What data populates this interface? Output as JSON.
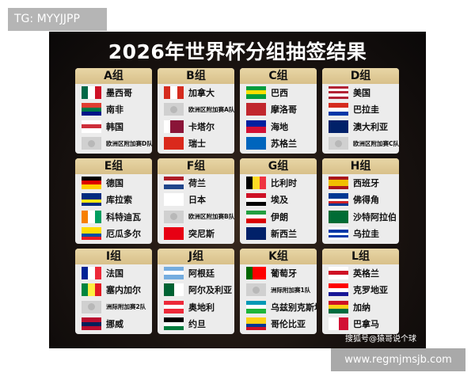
{
  "tag": "TG: MYYJJPP",
  "title": "2026年世界杯分组抽签结果",
  "credit": "搜狐号@猿哥说个球",
  "watermark": "www.regmjmsjb.com",
  "groups": [
    {
      "name": "A组",
      "teams": [
        {
          "name": "墨西哥",
          "flag": "v",
          "colors": [
            "#006847",
            "#ffffff",
            "#ce1126"
          ]
        },
        {
          "name": "南非",
          "flag": "h",
          "colors": [
            "#e03c31",
            "#007749",
            "#001489"
          ]
        },
        {
          "name": "韩国",
          "flag": "h",
          "colors": [
            "#ffffff",
            "#cd2e3a",
            "#ffffff"
          ]
        },
        {
          "name": "欧洲区附加赛D队",
          "flag": "placeholder"
        }
      ]
    },
    {
      "name": "B组",
      "teams": [
        {
          "name": "加拿大",
          "flag": "v",
          "colors": [
            "#d52b1e",
            "#ffffff",
            "#d52b1e"
          ]
        },
        {
          "name": "欧洲区附加赛A队",
          "flag": "placeholder"
        },
        {
          "name": "卡塔尔",
          "flag": "v",
          "colors": [
            "#ffffff",
            "#8a1538",
            "#8a1538"
          ]
        },
        {
          "name": "瑞士",
          "flag": "h",
          "colors": [
            "#da291c"
          ]
        }
      ]
    },
    {
      "name": "C组",
      "teams": [
        {
          "name": "巴西",
          "flag": "h",
          "colors": [
            "#009c3b",
            "#ffdf00",
            "#009c3b"
          ]
        },
        {
          "name": "摩洛哥",
          "flag": "h",
          "colors": [
            "#c1272d"
          ]
        },
        {
          "name": "海地",
          "flag": "h",
          "colors": [
            "#00209f",
            "#d21034"
          ]
        },
        {
          "name": "苏格兰",
          "flag": "h",
          "colors": [
            "#0065bd"
          ]
        }
      ]
    },
    {
      "name": "D组",
      "teams": [
        {
          "name": "美国",
          "flag": "h",
          "colors": [
            "#b22234",
            "#ffffff",
            "#b22234",
            "#ffffff",
            "#b22234"
          ]
        },
        {
          "name": "巴拉圭",
          "flag": "h",
          "colors": [
            "#d52b1e",
            "#ffffff",
            "#0038a8"
          ]
        },
        {
          "name": "澳大利亚",
          "flag": "h",
          "colors": [
            "#012169"
          ]
        },
        {
          "name": "欧洲区附加赛C队",
          "flag": "placeholder"
        }
      ]
    },
    {
      "name": "E组",
      "teams": [
        {
          "name": "德国",
          "flag": "h",
          "colors": [
            "#000000",
            "#dd0000",
            "#ffce00"
          ]
        },
        {
          "name": "库拉索",
          "flag": "h",
          "colors": [
            "#002b7f",
            "#002b7f",
            "#f9e814",
            "#002b7f"
          ]
        },
        {
          "name": "科特迪瓦",
          "flag": "v",
          "colors": [
            "#f77f00",
            "#ffffff",
            "#009e60"
          ]
        },
        {
          "name": "厄瓜多尔",
          "flag": "h",
          "colors": [
            "#ffdd00",
            "#ffdd00",
            "#034ea2",
            "#ed1c24"
          ]
        }
      ]
    },
    {
      "name": "F组",
      "teams": [
        {
          "name": "荷兰",
          "flag": "h",
          "colors": [
            "#ae1c28",
            "#ffffff",
            "#21468b"
          ]
        },
        {
          "name": "日本",
          "flag": "h",
          "colors": [
            "#ffffff"
          ]
        },
        {
          "name": "欧洲区附加赛B队",
          "flag": "placeholder"
        },
        {
          "name": "突尼斯",
          "flag": "h",
          "colors": [
            "#e70013"
          ]
        }
      ]
    },
    {
      "name": "G组",
      "teams": [
        {
          "name": "比利时",
          "flag": "v",
          "colors": [
            "#000000",
            "#fdda24",
            "#ef3340"
          ]
        },
        {
          "name": "埃及",
          "flag": "h",
          "colors": [
            "#ce1126",
            "#ffffff",
            "#000000"
          ]
        },
        {
          "name": "伊朗",
          "flag": "h",
          "colors": [
            "#239f40",
            "#ffffff",
            "#da0000"
          ]
        },
        {
          "name": "新西兰",
          "flag": "h",
          "colors": [
            "#012169"
          ]
        }
      ]
    },
    {
      "name": "H组",
      "teams": [
        {
          "name": "西班牙",
          "flag": "h",
          "colors": [
            "#aa151b",
            "#f1bf00",
            "#f1bf00",
            "#aa151b"
          ]
        },
        {
          "name": "佛得角",
          "flag": "h",
          "colors": [
            "#003893",
            "#003893",
            "#ffffff",
            "#cf2027",
            "#003893"
          ]
        },
        {
          "name": "沙特阿拉伯",
          "flag": "h",
          "colors": [
            "#006c35"
          ]
        },
        {
          "name": "乌拉圭",
          "flag": "h",
          "colors": [
            "#ffffff",
            "#0038a8",
            "#ffffff",
            "#0038a8",
            "#ffffff"
          ]
        }
      ]
    },
    {
      "name": "I组",
      "teams": [
        {
          "name": "法国",
          "flag": "v",
          "colors": [
            "#002395",
            "#ffffff",
            "#ed2939"
          ]
        },
        {
          "name": "塞内加尔",
          "flag": "v",
          "colors": [
            "#00853f",
            "#fdef42",
            "#e31b23"
          ]
        },
        {
          "name": "洲际附加赛2队",
          "flag": "placeholder"
        },
        {
          "name": "挪威",
          "flag": "h",
          "colors": [
            "#ba0c2f",
            "#00205b",
            "#ba0c2f"
          ]
        }
      ]
    },
    {
      "name": "J组",
      "teams": [
        {
          "name": "阿根廷",
          "flag": "h",
          "colors": [
            "#74acdf",
            "#ffffff",
            "#74acdf"
          ]
        },
        {
          "name": "阿尔及利亚",
          "flag": "v",
          "colors": [
            "#006233",
            "#ffffff"
          ]
        },
        {
          "name": "奥地利",
          "flag": "h",
          "colors": [
            "#ed2939",
            "#ffffff",
            "#ed2939"
          ]
        },
        {
          "name": "约旦",
          "flag": "h",
          "colors": [
            "#000000",
            "#ffffff",
            "#007a3d"
          ]
        }
      ]
    },
    {
      "name": "K组",
      "teams": [
        {
          "name": "葡萄牙",
          "flag": "v",
          "colors": [
            "#006600",
            "#ff0000",
            "#ff0000"
          ]
        },
        {
          "name": "洲际附加赛1队",
          "flag": "placeholder"
        },
        {
          "name": "乌兹别克斯坦",
          "flag": "h",
          "colors": [
            "#0099b5",
            "#ffffff",
            "#1eb53a"
          ]
        },
        {
          "name": "哥伦比亚",
          "flag": "h",
          "colors": [
            "#fcd116",
            "#fcd116",
            "#003893",
            "#ce1126"
          ]
        }
      ]
    },
    {
      "name": "L组",
      "teams": [
        {
          "name": "英格兰",
          "flag": "h",
          "colors": [
            "#ffffff",
            "#ce1124",
            "#ffffff"
          ]
        },
        {
          "name": "克罗地亚",
          "flag": "h",
          "colors": [
            "#ff0000",
            "#ffffff",
            "#171796"
          ]
        },
        {
          "name": "加纳",
          "flag": "h",
          "colors": [
            "#ce1126",
            "#fcd116",
            "#006b3f"
          ]
        },
        {
          "name": "巴拿马",
          "flag": "v",
          "colors": [
            "#ffffff",
            "#d21034"
          ]
        }
      ]
    }
  ]
}
